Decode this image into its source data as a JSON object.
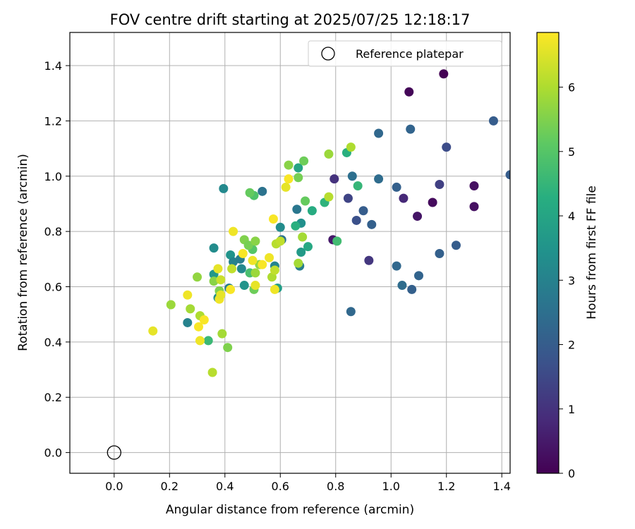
{
  "chart_data": {
    "type": "scatter",
    "title": "FOV centre drift starting at 2025/07/25 12:18:17",
    "xlabel": "Angular distance from reference (arcmin)",
    "ylabel": "Rotation from reference (arcmin)",
    "xlim": [
      -0.16,
      1.43
    ],
    "ylim": [
      -0.075,
      1.52
    ],
    "xticks": [
      "0.0",
      "0.2",
      "0.4",
      "0.6",
      "0.8",
      "1.0",
      "1.2",
      "1.4"
    ],
    "yticks": [
      "0.0",
      "0.2",
      "0.4",
      "0.6",
      "0.8",
      "1.0",
      "1.2",
      "1.4"
    ],
    "grid": true,
    "legend": {
      "placement": "top-right",
      "entries": [
        {
          "label": "Reference platepar",
          "marker": "open-circle"
        }
      ]
    },
    "reference_point": {
      "x": 0.0,
      "y": 0.0
    },
    "colorbar": {
      "label": "Hours from first FF file",
      "min": 0,
      "max": 6.85,
      "ticks": [
        "0",
        "1",
        "2",
        "3",
        "4",
        "5",
        "6"
      ],
      "colormap": "viridis"
    },
    "points": [
      {
        "x": 1.19,
        "y": 1.37,
        "h": 0.0
      },
      {
        "x": 1.065,
        "y": 1.305,
        "h": 0.1
      },
      {
        "x": 1.3,
        "y": 0.965,
        "h": 0.3
      },
      {
        "x": 1.3,
        "y": 0.89,
        "h": 0.3
      },
      {
        "x": 1.15,
        "y": 0.905,
        "h": 0.2
      },
      {
        "x": 1.095,
        "y": 0.855,
        "h": 0.4
      },
      {
        "x": 1.045,
        "y": 0.92,
        "h": 0.8
      },
      {
        "x": 1.175,
        "y": 0.97,
        "h": 1.3
      },
      {
        "x": 0.79,
        "y": 0.77,
        "h": 0.5
      },
      {
        "x": 0.795,
        "y": 0.99,
        "h": 1.0
      },
      {
        "x": 0.845,
        "y": 0.92,
        "h": 1.4
      },
      {
        "x": 0.92,
        "y": 0.695,
        "h": 1.1
      },
      {
        "x": 0.875,
        "y": 0.84,
        "h": 1.7
      },
      {
        "x": 0.9,
        "y": 0.875,
        "h": 2.0
      },
      {
        "x": 0.93,
        "y": 0.825,
        "h": 2.1
      },
      {
        "x": 1.2,
        "y": 1.105,
        "h": 1.6
      },
      {
        "x": 1.37,
        "y": 1.2,
        "h": 2.0
      },
      {
        "x": 1.43,
        "y": 1.005,
        "h": 2.0
      },
      {
        "x": 1.07,
        "y": 1.17,
        "h": 2.2
      },
      {
        "x": 0.955,
        "y": 1.155,
        "h": 2.3
      },
      {
        "x": 0.955,
        "y": 0.99,
        "h": 2.4
      },
      {
        "x": 0.86,
        "y": 1.0,
        "h": 2.5
      },
      {
        "x": 1.02,
        "y": 0.96,
        "h": 2.1
      },
      {
        "x": 1.235,
        "y": 0.75,
        "h": 2.0
      },
      {
        "x": 1.175,
        "y": 0.72,
        "h": 2.1
      },
      {
        "x": 1.1,
        "y": 0.64,
        "h": 2.2
      },
      {
        "x": 1.02,
        "y": 0.675,
        "h": 2.3
      },
      {
        "x": 1.04,
        "y": 0.605,
        "h": 2.4
      },
      {
        "x": 1.075,
        "y": 0.59,
        "h": 2.1
      },
      {
        "x": 0.855,
        "y": 0.51,
        "h": 2.3
      },
      {
        "x": 0.535,
        "y": 0.945,
        "h": 2.6
      },
      {
        "x": 0.395,
        "y": 0.955,
        "h": 3.2
      },
      {
        "x": 0.36,
        "y": 0.74,
        "h": 3.3
      },
      {
        "x": 0.265,
        "y": 0.47,
        "h": 3.0
      },
      {
        "x": 0.6,
        "y": 0.815,
        "h": 3.3
      },
      {
        "x": 0.605,
        "y": 0.77,
        "h": 2.6
      },
      {
        "x": 0.66,
        "y": 0.88,
        "h": 2.7
      },
      {
        "x": 0.67,
        "y": 0.675,
        "h": 2.9
      },
      {
        "x": 0.675,
        "y": 0.83,
        "h": 3.4
      },
      {
        "x": 0.42,
        "y": 0.715,
        "h": 3.5
      },
      {
        "x": 0.43,
        "y": 0.69,
        "h": 3.0
      },
      {
        "x": 0.455,
        "y": 0.7,
        "h": 2.9
      },
      {
        "x": 0.46,
        "y": 0.665,
        "h": 3.2
      },
      {
        "x": 0.47,
        "y": 0.605,
        "h": 3.5
      },
      {
        "x": 0.415,
        "y": 0.595,
        "h": 2.9
      },
      {
        "x": 0.375,
        "y": 0.56,
        "h": 3.3
      },
      {
        "x": 0.36,
        "y": 0.645,
        "h": 3.6
      },
      {
        "x": 0.58,
        "y": 0.675,
        "h": 3.1
      },
      {
        "x": 0.59,
        "y": 0.595,
        "h": 3.8
      },
      {
        "x": 0.675,
        "y": 0.725,
        "h": 3.7
      },
      {
        "x": 0.7,
        "y": 0.745,
        "h": 4.1
      },
      {
        "x": 0.715,
        "y": 0.875,
        "h": 4.2
      },
      {
        "x": 0.655,
        "y": 0.82,
        "h": 4.3
      },
      {
        "x": 0.665,
        "y": 1.03,
        "h": 4.0
      },
      {
        "x": 0.76,
        "y": 0.905,
        "h": 4.4
      },
      {
        "x": 0.84,
        "y": 1.085,
        "h": 4.3
      },
      {
        "x": 0.88,
        "y": 0.965,
        "h": 4.5
      },
      {
        "x": 0.805,
        "y": 0.765,
        "h": 4.7
      },
      {
        "x": 0.34,
        "y": 0.405,
        "h": 4.6
      },
      {
        "x": 0.41,
        "y": 0.38,
        "h": 5.5
      },
      {
        "x": 0.49,
        "y": 0.65,
        "h": 4.8
      },
      {
        "x": 0.505,
        "y": 0.59,
        "h": 5.3
      },
      {
        "x": 0.5,
        "y": 0.735,
        "h": 5.0
      },
      {
        "x": 0.505,
        "y": 0.93,
        "h": 4.9
      },
      {
        "x": 0.49,
        "y": 0.94,
        "h": 5.2
      },
      {
        "x": 0.47,
        "y": 0.77,
        "h": 5.5
      },
      {
        "x": 0.485,
        "y": 0.75,
        "h": 5.4
      },
      {
        "x": 0.51,
        "y": 0.765,
        "h": 5.6
      },
      {
        "x": 0.525,
        "y": 0.68,
        "h": 5.7
      },
      {
        "x": 0.51,
        "y": 0.65,
        "h": 5.8
      },
      {
        "x": 0.36,
        "y": 0.62,
        "h": 5.6
      },
      {
        "x": 0.3,
        "y": 0.635,
        "h": 5.7
      },
      {
        "x": 0.275,
        "y": 0.52,
        "h": 5.9
      },
      {
        "x": 0.31,
        "y": 0.495,
        "h": 6.0
      },
      {
        "x": 0.205,
        "y": 0.535,
        "h": 5.8
      },
      {
        "x": 0.38,
        "y": 0.585,
        "h": 5.5
      },
      {
        "x": 0.39,
        "y": 0.43,
        "h": 5.9
      },
      {
        "x": 0.355,
        "y": 0.29,
        "h": 6.1
      },
      {
        "x": 0.63,
        "y": 1.04,
        "h": 5.6
      },
      {
        "x": 0.665,
        "y": 0.995,
        "h": 5.4
      },
      {
        "x": 0.685,
        "y": 1.055,
        "h": 5.3
      },
      {
        "x": 0.69,
        "y": 0.91,
        "h": 5.2
      },
      {
        "x": 0.68,
        "y": 0.78,
        "h": 5.9
      },
      {
        "x": 0.665,
        "y": 0.685,
        "h": 5.9
      },
      {
        "x": 0.57,
        "y": 0.635,
        "h": 6.0
      },
      {
        "x": 0.58,
        "y": 0.66,
        "h": 6.2
      },
      {
        "x": 0.585,
        "y": 0.755,
        "h": 6.1
      },
      {
        "x": 0.6,
        "y": 0.765,
        "h": 6.2
      },
      {
        "x": 0.775,
        "y": 1.08,
        "h": 5.8
      },
      {
        "x": 0.775,
        "y": 0.925,
        "h": 6.1
      },
      {
        "x": 0.855,
        "y": 1.105,
        "h": 6.0
      },
      {
        "x": 0.425,
        "y": 0.665,
        "h": 6.2
      },
      {
        "x": 0.385,
        "y": 0.625,
        "h": 6.3
      },
      {
        "x": 0.14,
        "y": 0.44,
        "h": 6.6
      },
      {
        "x": 0.265,
        "y": 0.57,
        "h": 6.7
      },
      {
        "x": 0.305,
        "y": 0.455,
        "h": 6.8
      },
      {
        "x": 0.31,
        "y": 0.405,
        "h": 6.7
      },
      {
        "x": 0.325,
        "y": 0.48,
        "h": 6.8
      },
      {
        "x": 0.375,
        "y": 0.665,
        "h": 6.6
      },
      {
        "x": 0.38,
        "y": 0.555,
        "h": 6.7
      },
      {
        "x": 0.385,
        "y": 0.57,
        "h": 6.6
      },
      {
        "x": 0.42,
        "y": 0.59,
        "h": 6.8
      },
      {
        "x": 0.43,
        "y": 0.8,
        "h": 6.7
      },
      {
        "x": 0.465,
        "y": 0.72,
        "h": 6.8
      },
      {
        "x": 0.5,
        "y": 0.695,
        "h": 6.7
      },
      {
        "x": 0.51,
        "y": 0.605,
        "h": 6.6
      },
      {
        "x": 0.535,
        "y": 0.68,
        "h": 6.8
      },
      {
        "x": 0.56,
        "y": 0.705,
        "h": 6.7
      },
      {
        "x": 0.575,
        "y": 0.845,
        "h": 6.8
      },
      {
        "x": 0.58,
        "y": 0.59,
        "h": 6.7
      },
      {
        "x": 0.62,
        "y": 0.96,
        "h": 6.6
      },
      {
        "x": 0.63,
        "y": 0.99,
        "h": 6.8
      }
    ]
  }
}
